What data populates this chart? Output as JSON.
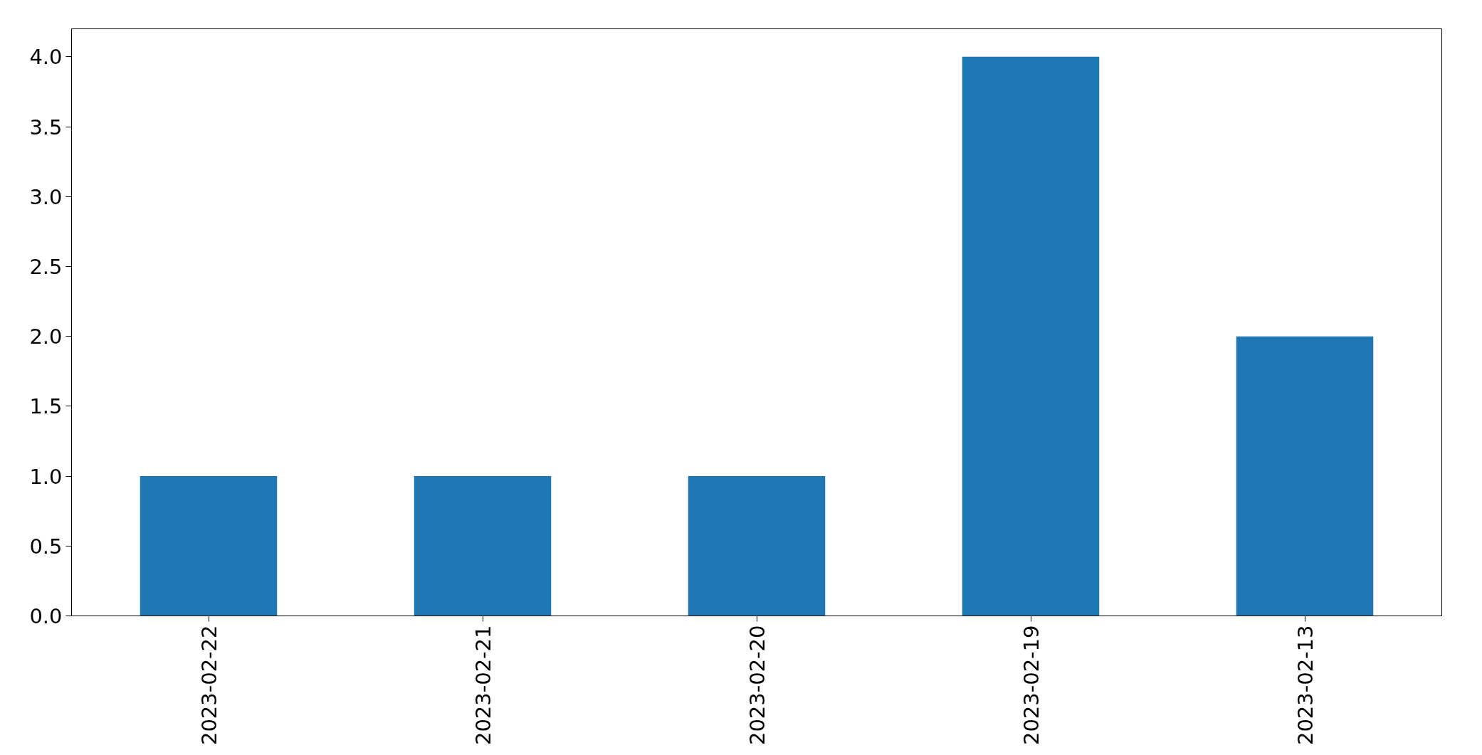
{
  "chart_data": {
    "type": "bar",
    "categories": [
      "2023-02-22",
      "2023-02-21",
      "2023-02-20",
      "2023-02-19",
      "2023-02-13"
    ],
    "values": [
      1,
      1,
      1,
      4,
      2
    ],
    "color": "#1f77b4",
    "ylim": [
      0,
      4.2
    ],
    "yticks": [
      {
        "value": 0,
        "label": "0.0"
      },
      {
        "value": 0.5,
        "label": "0.5"
      },
      {
        "value": 1,
        "label": "1.0"
      },
      {
        "value": 1.5,
        "label": "1.5"
      },
      {
        "value": 2,
        "label": "2.0"
      },
      {
        "value": 2.5,
        "label": "2.5"
      },
      {
        "value": 3,
        "label": "3.0"
      },
      {
        "value": 3.5,
        "label": "3.5"
      },
      {
        "value": 4,
        "label": "4.0"
      }
    ],
    "grid": false
  }
}
